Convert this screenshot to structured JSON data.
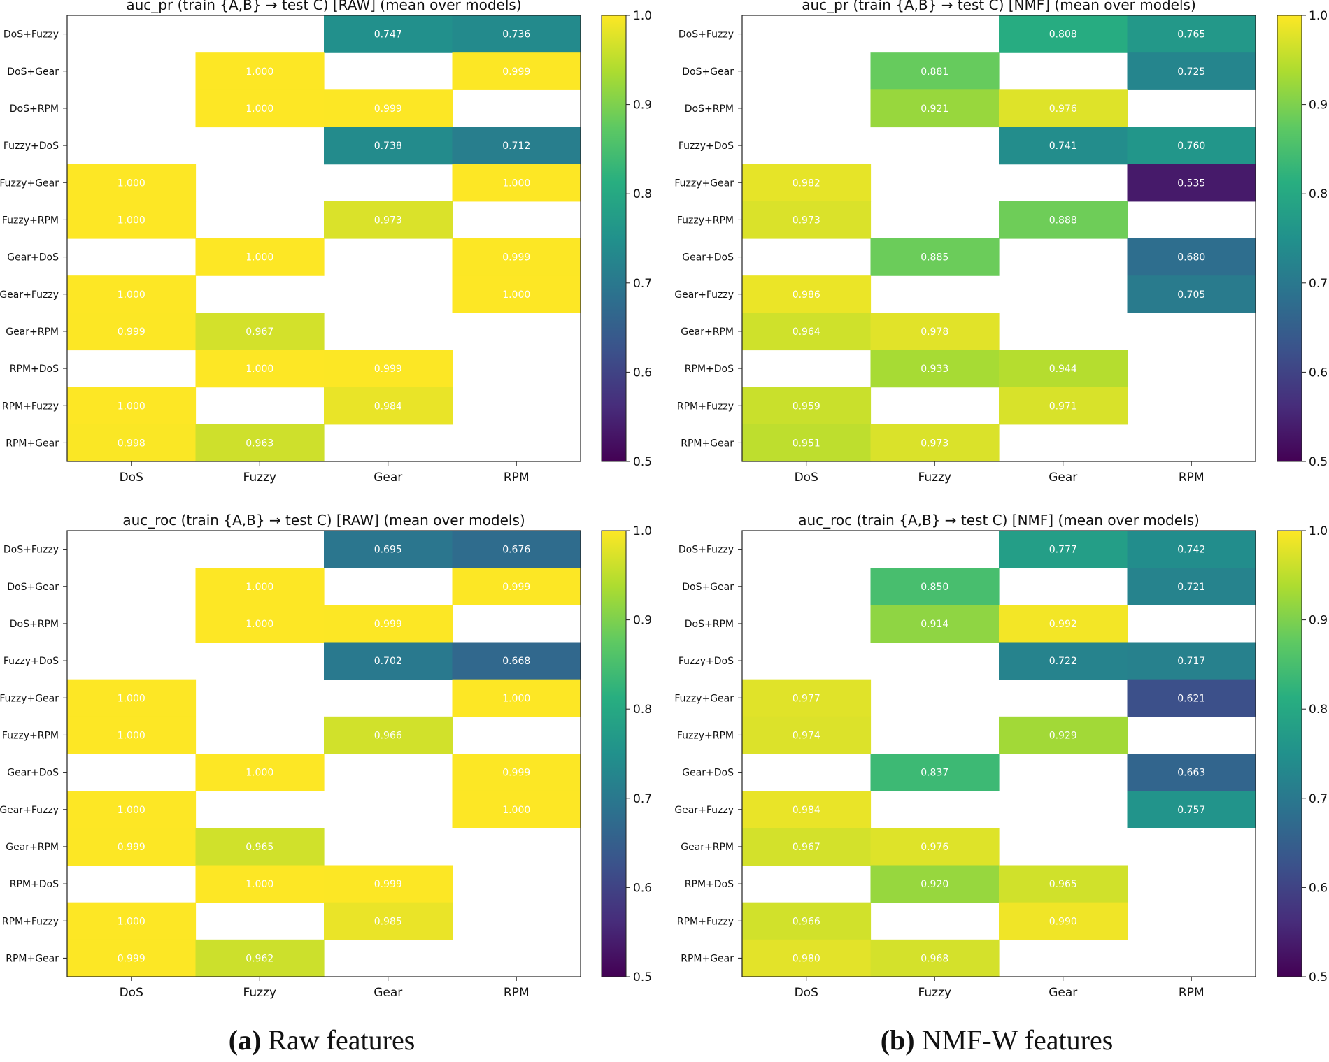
{
  "colorbar": {
    "ticks": [
      "1.0",
      "0.9",
      "0.8",
      "0.7",
      "0.6",
      "0.5"
    ],
    "min": 0.5,
    "max": 1.0
  },
  "captions": {
    "a": {
      "label": "(a)",
      "text": "Raw features"
    },
    "b": {
      "label": "(b)",
      "text": "NMF-W features"
    }
  },
  "chart_data": [
    {
      "type": "heatmap",
      "title": "auc_pr  (train {A,B} → test C)   [RAW]  (mean over models)",
      "rows": [
        "DoS+Fuzzy",
        "DoS+Gear",
        "DoS+RPM",
        "Fuzzy+DoS",
        "Fuzzy+Gear",
        "Fuzzy+RPM",
        "Gear+DoS",
        "Gear+Fuzzy",
        "Gear+RPM",
        "RPM+DoS",
        "RPM+Fuzzy",
        "RPM+Gear"
      ],
      "cols": [
        "DoS",
        "Fuzzy",
        "Gear",
        "RPM"
      ],
      "values": [
        [
          null,
          null,
          0.747,
          0.736
        ],
        [
          null,
          1.0,
          null,
          0.999
        ],
        [
          null,
          1.0,
          0.999,
          null
        ],
        [
          null,
          null,
          0.738,
          0.712
        ],
        [
          1.0,
          null,
          null,
          1.0
        ],
        [
          1.0,
          null,
          0.973,
          null
        ],
        [
          null,
          1.0,
          null,
          0.999
        ],
        [
          1.0,
          null,
          null,
          1.0
        ],
        [
          0.999,
          0.967,
          null,
          null
        ],
        [
          null,
          1.0,
          0.999,
          null
        ],
        [
          1.0,
          null,
          0.984,
          null
        ],
        [
          0.998,
          0.963,
          null,
          null
        ]
      ],
      "labels": [
        [
          "",
          "",
          "0.747",
          "0.736"
        ],
        [
          "",
          "1.000",
          "",
          "0.999"
        ],
        [
          "",
          "1.000",
          "0.999",
          ""
        ],
        [
          "",
          "",
          "0.738",
          "0.712"
        ],
        [
          "1.000",
          "",
          "",
          "1.000"
        ],
        [
          "1.000",
          "",
          "0.973",
          ""
        ],
        [
          "",
          "1.000",
          "",
          "0.999"
        ],
        [
          "1.000",
          "",
          "",
          "1.000"
        ],
        [
          "0.999",
          "0.967",
          "",
          ""
        ],
        [
          "",
          "1.000",
          "0.999",
          ""
        ],
        [
          "1.000",
          "",
          "0.984",
          ""
        ],
        [
          "0.998",
          "0.963",
          "",
          ""
        ]
      ],
      "vmin": 0.5,
      "vmax": 1.0
    },
    {
      "type": "heatmap",
      "title": "auc_pr  (train {A,B} → test C)   [NMF]  (mean over models)",
      "rows": [
        "DoS+Fuzzy",
        "DoS+Gear",
        "DoS+RPM",
        "Fuzzy+DoS",
        "Fuzzy+Gear",
        "Fuzzy+RPM",
        "Gear+DoS",
        "Gear+Fuzzy",
        "Gear+RPM",
        "RPM+DoS",
        "RPM+Fuzzy",
        "RPM+Gear"
      ],
      "cols": [
        "DoS",
        "Fuzzy",
        "Gear",
        "RPM"
      ],
      "values": [
        [
          null,
          null,
          0.808,
          0.765
        ],
        [
          null,
          0.881,
          null,
          0.725
        ],
        [
          null,
          0.921,
          0.976,
          null
        ],
        [
          null,
          null,
          0.741,
          0.76
        ],
        [
          0.982,
          null,
          null,
          0.535
        ],
        [
          0.973,
          null,
          0.888,
          null
        ],
        [
          null,
          0.885,
          null,
          0.68
        ],
        [
          0.986,
          null,
          null,
          0.705
        ],
        [
          0.964,
          0.978,
          null,
          null
        ],
        [
          null,
          0.933,
          0.944,
          null
        ],
        [
          0.959,
          null,
          0.971,
          null
        ],
        [
          0.951,
          0.973,
          null,
          null
        ]
      ],
      "labels": [
        [
          "",
          "",
          "0.808",
          "0.765"
        ],
        [
          "",
          "0.881",
          "",
          "0.725"
        ],
        [
          "",
          "0.921",
          "0.976",
          ""
        ],
        [
          "",
          "",
          "0.741",
          "0.760"
        ],
        [
          "0.982",
          "",
          "",
          "0.535"
        ],
        [
          "0.973",
          "",
          "0.888",
          ""
        ],
        [
          "",
          "0.885",
          "",
          "0.680"
        ],
        [
          "0.986",
          "",
          "",
          "0.705"
        ],
        [
          "0.964",
          "0.978",
          "",
          ""
        ],
        [
          "",
          "0.933",
          "0.944",
          ""
        ],
        [
          "0.959",
          "",
          "0.971",
          ""
        ],
        [
          "0.951",
          "0.973",
          "",
          ""
        ]
      ],
      "vmin": 0.5,
      "vmax": 1.0
    },
    {
      "type": "heatmap",
      "title": "auc_roc  (train {A,B} → test C)   [RAW]  (mean over models)",
      "rows": [
        "DoS+Fuzzy",
        "DoS+Gear",
        "DoS+RPM",
        "Fuzzy+DoS",
        "Fuzzy+Gear",
        "Fuzzy+RPM",
        "Gear+DoS",
        "Gear+Fuzzy",
        "Gear+RPM",
        "RPM+DoS",
        "RPM+Fuzzy",
        "RPM+Gear"
      ],
      "cols": [
        "DoS",
        "Fuzzy",
        "Gear",
        "RPM"
      ],
      "values": [
        [
          null,
          null,
          0.695,
          0.676
        ],
        [
          null,
          1.0,
          null,
          0.999
        ],
        [
          null,
          1.0,
          0.999,
          null
        ],
        [
          null,
          null,
          0.702,
          0.668
        ],
        [
          1.0,
          null,
          null,
          1.0
        ],
        [
          1.0,
          null,
          0.966,
          null
        ],
        [
          null,
          1.0,
          null,
          0.999
        ],
        [
          1.0,
          null,
          null,
          1.0
        ],
        [
          0.999,
          0.965,
          null,
          null
        ],
        [
          null,
          1.0,
          0.999,
          null
        ],
        [
          1.0,
          null,
          0.985,
          null
        ],
        [
          0.999,
          0.962,
          null,
          null
        ]
      ],
      "labels": [
        [
          "",
          "",
          "0.695",
          "0.676"
        ],
        [
          "",
          "1.000",
          "",
          "0.999"
        ],
        [
          "",
          "1.000",
          "0.999",
          ""
        ],
        [
          "",
          "",
          "0.702",
          "0.668"
        ],
        [
          "1.000",
          "",
          "",
          "1.000"
        ],
        [
          "1.000",
          "",
          "0.966",
          ""
        ],
        [
          "",
          "1.000",
          "",
          "0.999"
        ],
        [
          "1.000",
          "",
          "",
          "1.000"
        ],
        [
          "0.999",
          "0.965",
          "",
          ""
        ],
        [
          "",
          "1.000",
          "0.999",
          ""
        ],
        [
          "1.000",
          "",
          "0.985",
          ""
        ],
        [
          "0.999",
          "0.962",
          "",
          ""
        ]
      ],
      "vmin": 0.5,
      "vmax": 1.0
    },
    {
      "type": "heatmap",
      "title": "auc_roc  (train {A,B} → test C)   [NMF]  (mean over models)",
      "rows": [
        "DoS+Fuzzy",
        "DoS+Gear",
        "DoS+RPM",
        "Fuzzy+DoS",
        "Fuzzy+Gear",
        "Fuzzy+RPM",
        "Gear+DoS",
        "Gear+Fuzzy",
        "Gear+RPM",
        "RPM+DoS",
        "RPM+Fuzzy",
        "RPM+Gear"
      ],
      "cols": [
        "DoS",
        "Fuzzy",
        "Gear",
        "RPM"
      ],
      "values": [
        [
          null,
          null,
          0.777,
          0.742
        ],
        [
          null,
          0.85,
          null,
          0.721
        ],
        [
          null,
          0.914,
          0.992,
          null
        ],
        [
          null,
          null,
          0.722,
          0.717
        ],
        [
          0.977,
          null,
          null,
          0.621
        ],
        [
          0.974,
          null,
          0.929,
          null
        ],
        [
          null,
          0.837,
          null,
          0.663
        ],
        [
          0.984,
          null,
          null,
          0.757
        ],
        [
          0.967,
          0.976,
          null,
          null
        ],
        [
          null,
          0.92,
          0.965,
          null
        ],
        [
          0.966,
          null,
          0.99,
          null
        ],
        [
          0.98,
          0.968,
          null,
          null
        ]
      ],
      "labels": [
        [
          "",
          "",
          "0.777",
          "0.742"
        ],
        [
          "",
          "0.850",
          "",
          "0.721"
        ],
        [
          "",
          "0.914",
          "0.992",
          ""
        ],
        [
          "",
          "",
          "0.722",
          "0.717"
        ],
        [
          "0.977",
          "",
          "",
          "0.621"
        ],
        [
          "0.974",
          "",
          "0.929",
          ""
        ],
        [
          "",
          "0.837",
          "",
          "0.663"
        ],
        [
          "0.984",
          "",
          "",
          "0.757"
        ],
        [
          "0.967",
          "0.976",
          "",
          ""
        ],
        [
          "",
          "0.920",
          "0.965",
          ""
        ],
        [
          "0.966",
          "",
          "0.990",
          ""
        ],
        [
          "0.980",
          "0.968",
          "",
          ""
        ]
      ],
      "vmin": 0.5,
      "vmax": 1.0
    }
  ]
}
